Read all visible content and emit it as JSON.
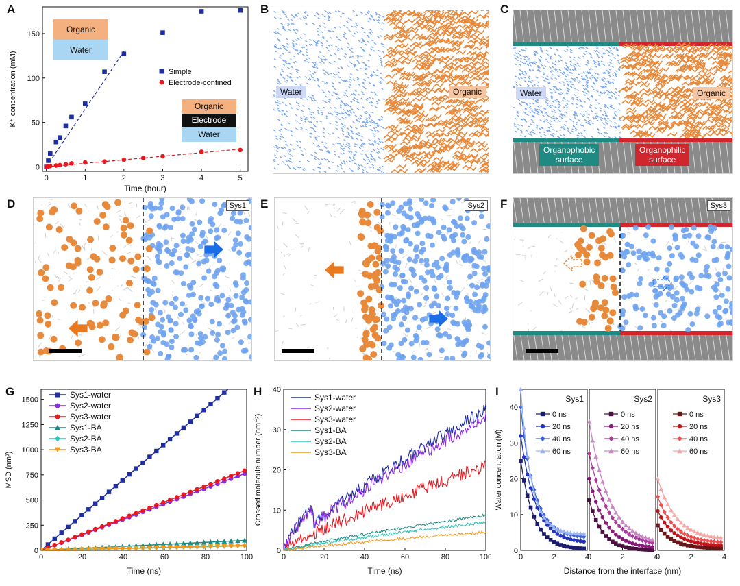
{
  "panels": {
    "A": "A",
    "B": "B",
    "C": "C",
    "D": "D",
    "E": "E",
    "F": "F",
    "G": "G",
    "H": "H",
    "I": "I"
  },
  "schematics": {
    "organic": "Organic",
    "water": "Water",
    "electrode": "Electrode",
    "organophobic": "Organophobic\nsurface",
    "organophilic": "Organophilic\nsurface"
  },
  "systems": {
    "sys1": "Sys1",
    "sys2": "Sys2",
    "sys3": "Sys3"
  },
  "colors": {
    "water_blue": "#6fa3ee",
    "organic_orange": "#e88a3c",
    "organophobic_teal": "#1f8a82",
    "organophilic_red": "#d0262e",
    "electrode_gray": "#7a7a7a"
  },
  "chart_data": [
    {
      "id": "A",
      "type": "scatter",
      "xlabel": "Time (hour)",
      "ylabel": "K⁺ concentration (mM)",
      "xlim": [
        -0.1,
        5.2
      ],
      "ylim": [
        -5,
        180
      ],
      "xticks": [
        0,
        1,
        2,
        3,
        4,
        5
      ],
      "yticks": [
        0,
        50,
        100,
        150
      ],
      "series": [
        {
          "name": "Simple",
          "color": "#1f2ea0",
          "marker": "square",
          "x": [
            0,
            0.05,
            0.1,
            0.25,
            0.35,
            0.5,
            0.65,
            1.0,
            1.5,
            2.0,
            3.0,
            4.0,
            5.0
          ],
          "y": [
            0,
            7,
            15,
            28,
            33,
            46,
            56,
            71,
            107,
            127,
            151,
            175,
            176
          ],
          "fit": [
            [
              0,
              0
            ],
            [
              2.0,
              130
            ]
          ]
        },
        {
          "name": "Electrode-confined",
          "color": "#e8191f",
          "marker": "circle",
          "x": [
            0,
            0.05,
            0.1,
            0.25,
            0.35,
            0.5,
            0.65,
            1.0,
            1.5,
            2.0,
            2.5,
            3.0,
            4.0,
            5.0
          ],
          "y": [
            0,
            0.5,
            1,
            1.5,
            2,
            3,
            4,
            5,
            6,
            8,
            10,
            12,
            17,
            19
          ],
          "fit": [
            [
              0,
              0
            ],
            [
              5.0,
              20
            ]
          ]
        }
      ]
    },
    {
      "id": "G",
      "type": "line",
      "xlabel": "Time (ns)",
      "ylabel": "MSD (nm²)",
      "xlim": [
        0,
        100
      ],
      "ylim": [
        0,
        1600
      ],
      "xticks": [
        0,
        20,
        40,
        60,
        80,
        100
      ],
      "yticks": [
        0,
        250,
        500,
        750,
        1000,
        1250,
        1500
      ],
      "series": [
        {
          "name": "Sys1-water",
          "color": "#1f2ea0",
          "marker": "square",
          "slope": 17.6
        },
        {
          "name": "Sys2-water",
          "color": "#8a2be2",
          "marker": "circle",
          "slope": 7.7
        },
        {
          "name": "Sys3-water",
          "color": "#e8191f",
          "marker": "circle",
          "slope": 8.0
        },
        {
          "name": "Sys1-BA",
          "color": "#1f8a82",
          "marker": "triangle-up",
          "slope": 1.0
        },
        {
          "name": "Sys2-BA",
          "color": "#27c7c0",
          "marker": "diamond",
          "slope": 0.5
        },
        {
          "name": "Sys3-BA",
          "color": "#f39a1c",
          "marker": "triangle-down",
          "slope": 0.45
        }
      ]
    },
    {
      "id": "H",
      "type": "line",
      "xlabel": "Time (ns)",
      "ylabel": "Crossed molecule number (nm⁻²)",
      "xlim": [
        0,
        100
      ],
      "ylim": [
        0,
        40
      ],
      "xticks": [
        0,
        20,
        40,
        60,
        80,
        100
      ],
      "yticks": [
        0,
        10,
        20,
        30,
        40
      ],
      "series": [
        {
          "name": "Sys1-water",
          "color": "#1f2ea0",
          "end": 35
        },
        {
          "name": "Sys2-water",
          "color": "#8a2be2",
          "end": 33
        },
        {
          "name": "Sys3-water",
          "color": "#e8191f",
          "end": 21
        },
        {
          "name": "Sys1-BA",
          "color": "#1f8a82",
          "end": 8.7
        },
        {
          "name": "Sys2-BA",
          "color": "#27c7c0",
          "end": 7
        },
        {
          "name": "Sys3-BA",
          "color": "#f39a1c",
          "end": 4.5
        }
      ]
    },
    {
      "id": "I",
      "type": "line",
      "xlabel": "Distance from the interface (nm)",
      "ylabel": "Water concentration (M)",
      "xlim": [
        0,
        4
      ],
      "ylim": [
        0,
        45
      ],
      "xticks": [
        0,
        2,
        4
      ],
      "yticks": [
        0,
        10,
        20,
        30,
        40
      ],
      "subpanels": [
        {
          "title": "Sys1",
          "series": [
            {
              "name": "0 ns",
              "color": "#1a1a6e",
              "marker": "square",
              "y0": 25,
              "decay": 0.8,
              "plateau": 0.3
            },
            {
              "name": "20 ns",
              "color": "#2233bb",
              "marker": "circle",
              "y0": 32,
              "decay": 0.9,
              "plateau": 2
            },
            {
              "name": "40 ns",
              "color": "#3c64e0",
              "marker": "diamond",
              "y0": 40,
              "decay": 0.8,
              "plateau": 3.5
            },
            {
              "name": "60 ns",
              "color": "#9bb4ee",
              "marker": "triangle-up",
              "y0": 45,
              "decay": 0.65,
              "plateau": 4.5
            }
          ]
        },
        {
          "title": "Sys2",
          "series": [
            {
              "name": "0 ns",
              "color": "#4a1040",
              "marker": "square",
              "y0": 14,
              "decay": 0.8,
              "plateau": 0
            },
            {
              "name": "20 ns",
              "color": "#8a1a7a",
              "marker": "circle",
              "y0": 20,
              "decay": 1.0,
              "plateau": 0.5
            },
            {
              "name": "40 ns",
              "color": "#a83c9a",
              "marker": "diamond",
              "y0": 27,
              "decay": 1.2,
              "plateau": 1
            },
            {
              "name": "60 ns",
              "color": "#c889c4",
              "marker": "triangle-up",
              "y0": 36,
              "decay": 1.2,
              "plateau": 1.5
            }
          ]
        },
        {
          "title": "Sys3",
          "series": [
            {
              "name": "0 ns",
              "color": "#6a1616",
              "marker": "square",
              "y0": 7,
              "decay": 0.9,
              "plateau": 0.5
            },
            {
              "name": "20 ns",
              "color": "#c0141a",
              "marker": "circle",
              "y0": 11,
              "decay": 1.0,
              "plateau": 1.2
            },
            {
              "name": "40 ns",
              "color": "#ee5050",
              "marker": "diamond",
              "y0": 15,
              "decay": 1.0,
              "plateau": 2
            },
            {
              "name": "60 ns",
              "color": "#f5a9a9",
              "marker": "triangle-up",
              "y0": 20,
              "decay": 1.1,
              "plateau": 3
            }
          ]
        }
      ]
    }
  ]
}
